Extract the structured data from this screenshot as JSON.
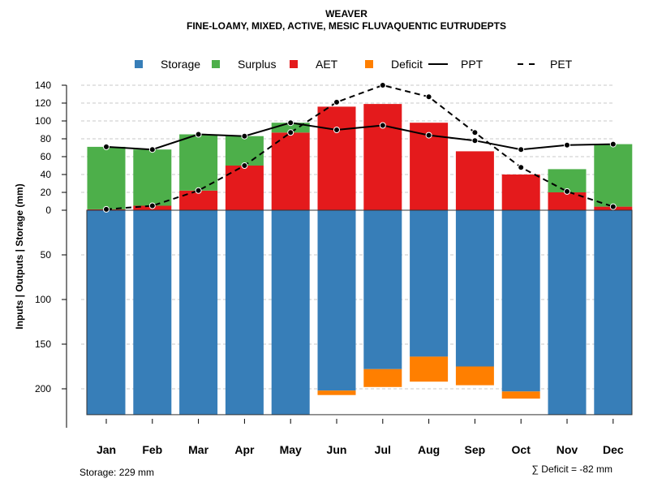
{
  "chart_data": {
    "type": "bar",
    "title": "WEAVER",
    "subtitle": "FINE-LOAMY, MIXED, ACTIVE, MESIC FLUVAQUENTIC EUTRUDEPTS",
    "ylabel": "Inputs | Outputs | Storage    (mm)",
    "categories": [
      "Jan",
      "Feb",
      "Mar",
      "Apr",
      "May",
      "Jun",
      "Jul",
      "Aug",
      "Sep",
      "Oct",
      "Nov",
      "Dec"
    ],
    "upper_ticks": [
      0,
      20,
      40,
      60,
      80,
      100,
      120,
      140
    ],
    "lower_ticks": [
      50,
      100,
      150,
      200
    ],
    "ylim_upper": [
      0,
      140
    ],
    "ylim_lower": [
      0,
      229
    ],
    "grid": true,
    "legend_position": "top",
    "legend": [
      {
        "name": "Storage",
        "type": "box",
        "color": "#377EB8"
      },
      {
        "name": "Surplus",
        "type": "box",
        "color": "#4DAF4A"
      },
      {
        "name": "AET",
        "type": "box",
        "color": "#E41A1C"
      },
      {
        "name": "Deficit",
        "type": "box",
        "color": "#FF7F00"
      },
      {
        "name": "PPT",
        "type": "solid"
      },
      {
        "name": "PET",
        "type": "dashed"
      }
    ],
    "series": [
      {
        "name": "AET",
        "values": [
          1,
          5,
          22,
          50,
          87,
          116,
          119,
          98,
          66,
          40,
          20,
          4
        ]
      },
      {
        "name": "Surplus",
        "values": [
          70,
          63,
          63,
          33,
          11,
          0,
          0,
          0,
          0,
          0,
          26,
          70
        ]
      },
      {
        "name": "PPT",
        "values": [
          71,
          68,
          85,
          83,
          98,
          90,
          95,
          84,
          78,
          68,
          73,
          74
        ]
      },
      {
        "name": "PET",
        "values": [
          1,
          5,
          22,
          50,
          87,
          121,
          140,
          127,
          87,
          48,
          21,
          4
        ]
      },
      {
        "name": "Storage",
        "values": [
          229,
          229,
          229,
          229,
          229,
          202,
          178,
          164,
          175,
          203,
          229,
          229
        ]
      },
      {
        "name": "Deficit",
        "values": [
          0,
          0,
          0,
          0,
          0,
          5,
          20,
          28,
          21,
          8,
          0,
          0
        ]
      }
    ],
    "annotations": {
      "storage": "Storage: 229 mm",
      "deficit": "∑ Deficit = -82 mm"
    }
  }
}
